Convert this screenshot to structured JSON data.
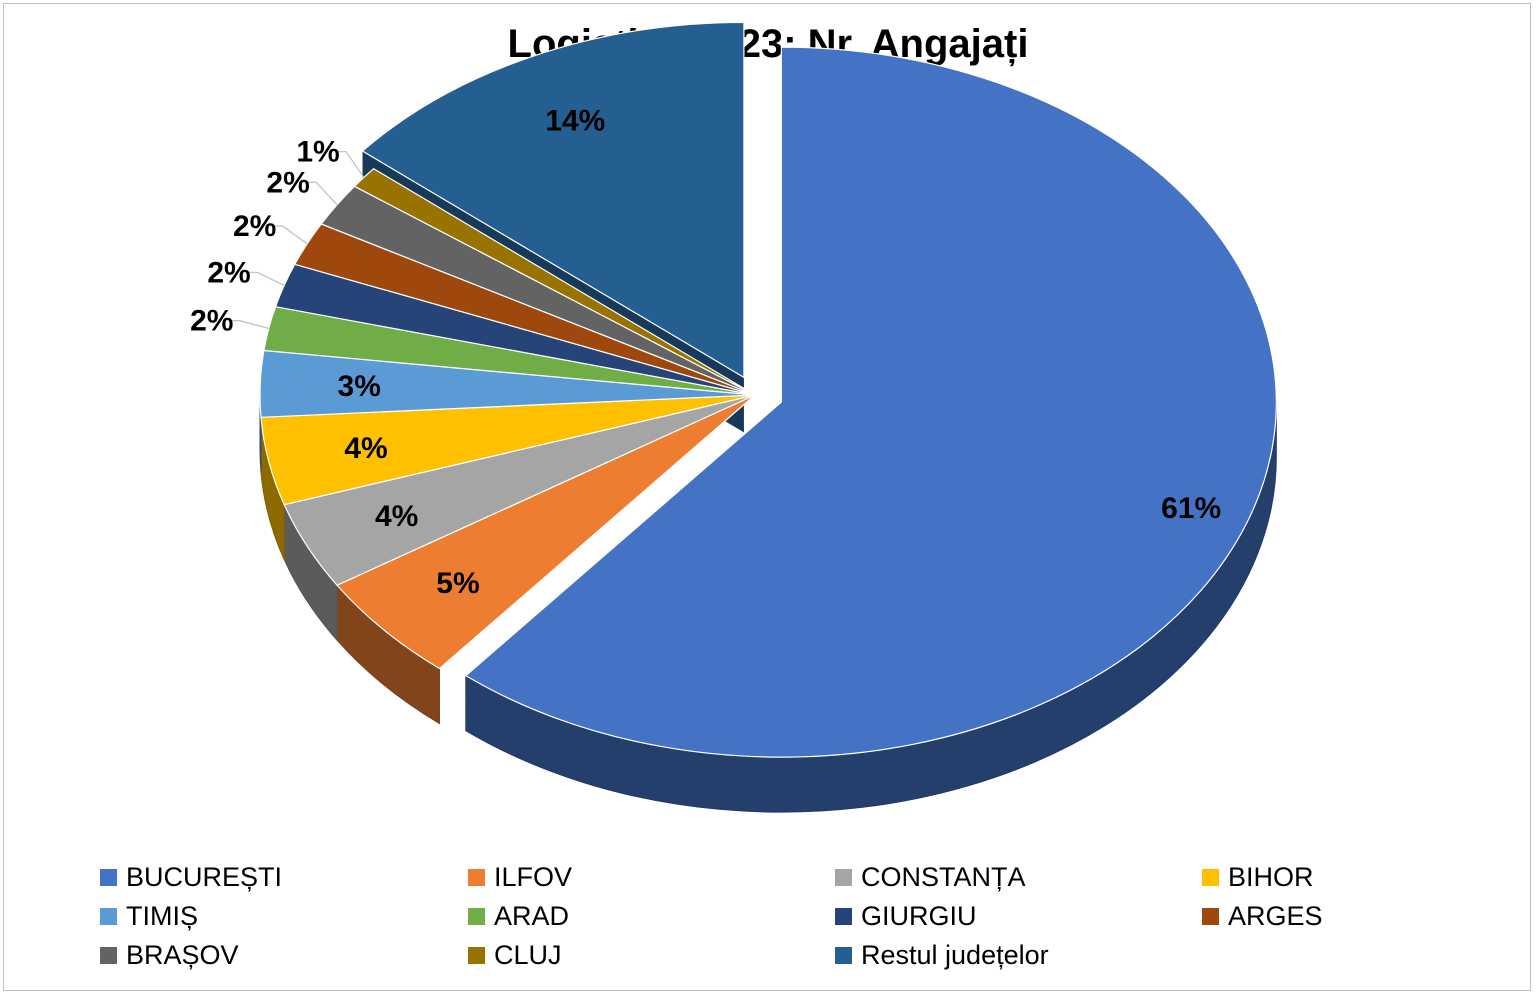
{
  "chart_data": {
    "type": "pie",
    "title": "Logistică 2023: Nr. Angajați",
    "categories": [
      "BUCUREȘTI",
      "ILFOV",
      "CONSTANȚA",
      "BIHOR",
      "TIMIȘ",
      "ARAD",
      "GIURGIU",
      "ARGES",
      "BRAȘOV",
      "CLUJ",
      "Restul județelor"
    ],
    "values": [
      61,
      5,
      4,
      4,
      3,
      2,
      2,
      2,
      2,
      1,
      14
    ],
    "labels": [
      "61%",
      "5%",
      "4%",
      "4%",
      "3%",
      "2%",
      "2%",
      "2%",
      "2%",
      "1%",
      "14%"
    ],
    "colors": [
      "#4472C4",
      "#ED7D31",
      "#A5A5A5",
      "#FFC000",
      "#5B9BD5",
      "#70AD47",
      "#264478",
      "#9E480E",
      "#636363",
      "#997300",
      "#255E91"
    ],
    "legend_position": "bottom",
    "exploded": [
      "BUCUREȘTI",
      "Restul județelor"
    ]
  }
}
